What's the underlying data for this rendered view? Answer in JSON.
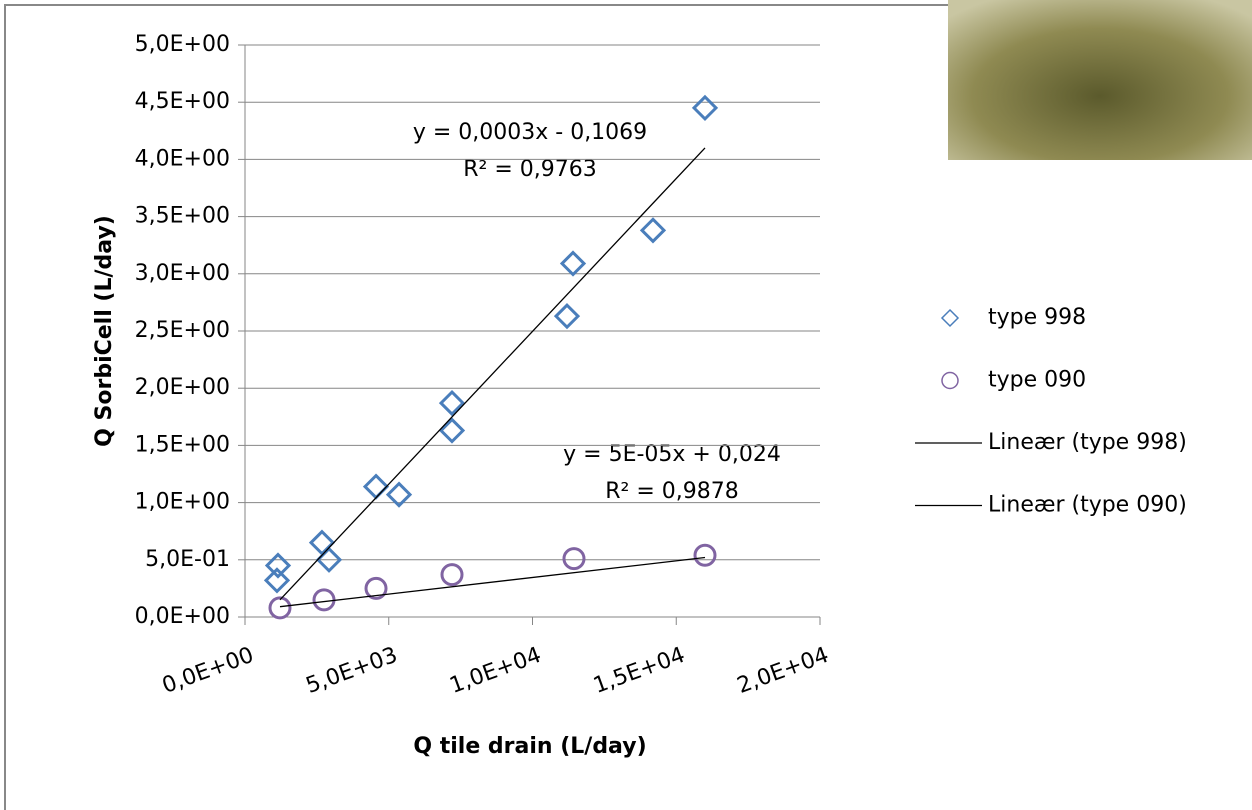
{
  "chart_data": {
    "type": "scatter",
    "x_label": "Q tile drain (L/day)",
    "y_label": "Q SorbiCell (L/day)",
    "xlim": [
      0,
      20000
    ],
    "ylim": [
      0,
      5
    ],
    "xticks": [
      {
        "value": 0,
        "label": "0,0E+00"
      },
      {
        "value": 5000,
        "label": "5,0E+03"
      },
      {
        "value": 10000,
        "label": "1,0E+04"
      },
      {
        "value": 15000,
        "label": "1,5E+04"
      },
      {
        "value": 20000,
        "label": "2,0E+04"
      }
    ],
    "yticks": [
      {
        "value": 0,
        "label": "0,0E+00"
      },
      {
        "value": 0.5,
        "label": "5,0E-01"
      },
      {
        "value": 1,
        "label": "1,0E+00"
      },
      {
        "value": 1.5,
        "label": "1,5E+00"
      },
      {
        "value": 2,
        "label": "2,0E+00"
      },
      {
        "value": 2.5,
        "label": "2,5E+00"
      },
      {
        "value": 3,
        "label": "3,0E+00"
      },
      {
        "value": 3.5,
        "label": "3,5E+00"
      },
      {
        "value": 4,
        "label": "4,0E+00"
      },
      {
        "value": 4.5,
        "label": "4,5E+00"
      },
      {
        "value": 5,
        "label": "5,0E+00"
      }
    ],
    "grid": true,
    "legend": "right",
    "series": [
      {
        "name": "type 998",
        "mode": "markers",
        "marker": "diamond",
        "color": "#4a7ebb",
        "x": [
          1148,
          1113,
          2678,
          2922,
          4557,
          5357,
          7200,
          7200,
          11200,
          11409,
          14191,
          16000
        ],
        "values": [
          0.45,
          0.32,
          0.65,
          0.5,
          1.14,
          1.07,
          1.63,
          1.87,
          2.63,
          3.09,
          3.38,
          4.45
        ]
      },
      {
        "name": "type 090",
        "mode": "markers",
        "marker": "circle",
        "color": "#8064a2",
        "x": [
          1217,
          2748,
          4557,
          7200,
          11443,
          16000
        ],
        "values": [
          0.08,
          0.15,
          0.25,
          0.37,
          0.51,
          0.54
        ]
      },
      {
        "name": "Lineær (type 998)",
        "mode": "line",
        "color": "#000000",
        "x": [
          1217,
          16000
        ],
        "values": [
          0.15,
          4.1
        ]
      },
      {
        "name": "Lineær (type 090)",
        "mode": "line",
        "color": "#000000",
        "x": [
          1217,
          16000
        ],
        "values": [
          0.09,
          0.52
        ]
      }
    ],
    "annotations": [
      "y = 0,0003x - 0,1069",
      "R² = 0,9763",
      "y = 5E-05x + 0,024",
      "R² = 0,9878"
    ]
  }
}
